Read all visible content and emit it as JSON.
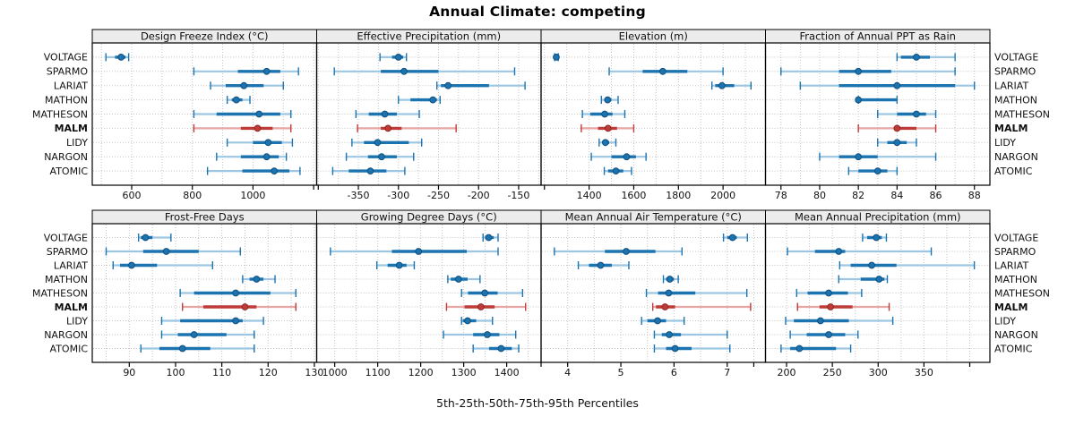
{
  "title": "Annual Climate: competing",
  "footer": "5th-25th-50th-75th-95th Percentiles",
  "sites": [
    "VOLTAGE",
    "SPARMO",
    "LARIAT",
    "MATHON",
    "MATHESON",
    "MALM",
    "LIDY",
    "NARGON",
    "ATOMIC"
  ],
  "highlight_site": "MALM",
  "percentiles": [
    5,
    25,
    50,
    75,
    95
  ],
  "colors": {
    "series": "#1b73b0",
    "series_light": "#9cc6e2",
    "series_edge": "#11507e",
    "highlight": "#bf3b38",
    "highlight_light": "#e7a6a4",
    "highlight_edge": "#8e2723",
    "strip_bg": "#ececec",
    "panel_border": "#000000",
    "grid": "#c4c4c4",
    "text": "#111111"
  },
  "chart_data": [
    {
      "type": "interval",
      "title": "Design Freeze Index (°C)",
      "row": 0,
      "col": 0,
      "xlim": [
        470,
        1210
      ],
      "ticks": [
        600,
        800,
        1000
      ],
      "grid_step": 100,
      "edge_ticks": [
        1200
      ],
      "values": [
        [
          515,
          545,
          565,
          580,
          590
        ],
        [
          805,
          950,
          1045,
          1090,
          1150
        ],
        [
          860,
          910,
          970,
          1035,
          1100
        ],
        [
          915,
          930,
          945,
          965,
          990
        ],
        [
          805,
          880,
          1020,
          1090,
          1125
        ],
        [
          805,
          960,
          1015,
          1065,
          1125
        ],
        [
          915,
          1000,
          1050,
          1095,
          1130
        ],
        [
          880,
          960,
          1045,
          1085,
          1110
        ],
        [
          850,
          965,
          1070,
          1120,
          1155
        ]
      ]
    },
    {
      "type": "interval",
      "title": "Effective Precipitation (mm)",
      "row": 0,
      "col": 1,
      "xlim": [
        -402,
        -122
      ],
      "ticks": [
        -350,
        -300,
        -250,
        -200,
        -150
      ],
      "grid_step": 25,
      "edge_ticks": [
        -400
      ],
      "values": [
        [
          -323,
          -308,
          -300,
          -294,
          -290
        ],
        [
          -380,
          -322,
          -293,
          -250,
          -155
        ],
        [
          -252,
          -247,
          -238,
          -187,
          -142
        ],
        [
          -300,
          -285,
          -257,
          -252,
          -248
        ],
        [
          -353,
          -337,
          -317,
          -302,
          -274
        ],
        [
          -351,
          -322,
          -313,
          -296,
          -228
        ],
        [
          -358,
          -343,
          -326,
          -287,
          -271
        ],
        [
          -365,
          -338,
          -321,
          -302,
          -281
        ],
        [
          -382,
          -362,
          -335,
          -315,
          -292
        ]
      ]
    },
    {
      "type": "interval",
      "title": "Elevation (m)",
      "row": 0,
      "col": 2,
      "xlim": [
        1185,
        2190
      ],
      "ticks": [
        1400,
        1600,
        1800,
        2000
      ],
      "grid_step": 100,
      "edge_ticks": [
        1200
      ],
      "values": [
        [
          1246,
          1250,
          1253,
          1257,
          1262
        ],
        [
          1490,
          1640,
          1730,
          1840,
          2000
        ],
        [
          1950,
          1965,
          1995,
          2050,
          2125
        ],
        [
          1455,
          1470,
          1483,
          1500,
          1530
        ],
        [
          1370,
          1405,
          1470,
          1505,
          1560
        ],
        [
          1365,
          1440,
          1485,
          1525,
          1600
        ],
        [
          1445,
          1462,
          1473,
          1490,
          1520
        ],
        [
          1410,
          1500,
          1568,
          1610,
          1655
        ],
        [
          1468,
          1485,
          1520,
          1553,
          1590
        ]
      ]
    },
    {
      "type": "interval",
      "title": "Fraction of Annual PPT as Rain",
      "row": 0,
      "col": 3,
      "xlim": [
        77.2,
        88.8
      ],
      "ticks": [
        78,
        80,
        82,
        84,
        86,
        88
      ],
      "grid_step": 1,
      "edge_ticks": [],
      "values": [
        [
          84,
          84.2,
          85,
          85.7,
          87
        ],
        [
          78,
          81,
          82,
          83.7,
          87
        ],
        [
          79,
          81,
          84,
          87,
          88
        ],
        [
          82,
          82,
          82,
          84,
          84
        ],
        [
          83,
          84,
          85,
          85.5,
          86
        ],
        [
          82,
          84,
          84,
          85,
          86
        ],
        [
          83,
          83.5,
          84,
          84.5,
          85
        ],
        [
          80,
          81,
          82,
          83,
          86
        ],
        [
          81.5,
          82,
          83,
          83.5,
          84
        ]
      ]
    },
    {
      "type": "interval",
      "title": "Frost-Free Days",
      "row": 1,
      "col": 0,
      "xlim": [
        82,
        130.5
      ],
      "ticks": [
        90,
        100,
        110,
        120,
        130
      ],
      "grid_step": 5,
      "edge_ticks": [],
      "values": [
        [
          92,
          92.5,
          93.5,
          95,
          99
        ],
        [
          85,
          93,
          98,
          105,
          114
        ],
        [
          86.5,
          88,
          90.5,
          96,
          108
        ],
        [
          114.5,
          116,
          117.5,
          119,
          121.5
        ],
        [
          101,
          104,
          113,
          120.5,
          126
        ],
        [
          101.5,
          106,
          115,
          117.5,
          126
        ],
        [
          97,
          101,
          113,
          114.5,
          119
        ],
        [
          97,
          100.5,
          104,
          111,
          117
        ],
        [
          92.5,
          96.5,
          101.5,
          107.5,
          117
        ]
      ]
    },
    {
      "type": "interval",
      "title": "Growing Degree Days (°C)",
      "row": 1,
      "col": 1,
      "xlim": [
        958,
        1480
      ],
      "ticks": [
        1000,
        1100,
        1200,
        1300,
        1400
      ],
      "grid_step": 50,
      "edge_ticks": [],
      "values": [
        [
          1345,
          1350,
          1358,
          1370,
          1380
        ],
        [
          990,
          1133,
          1195,
          1307,
          1380
        ],
        [
          1098,
          1123,
          1150,
          1167,
          1185
        ],
        [
          1263,
          1270,
          1288,
          1309,
          1338
        ],
        [
          1295,
          1310,
          1349,
          1379,
          1437
        ],
        [
          1260,
          1302,
          1340,
          1372,
          1444
        ],
        [
          1295,
          1298,
          1309,
          1329,
          1367
        ],
        [
          1253,
          1322,
          1355,
          1383,
          1421
        ],
        [
          1322,
          1359,
          1387,
          1412,
          1428
        ]
      ]
    },
    {
      "type": "interval",
      "title": "Mean Annual Air Temperature (°C)",
      "row": 1,
      "col": 2,
      "xlim": [
        3.5,
        7.72
      ],
      "ticks": [
        4,
        5,
        6,
        7
      ],
      "grid_step": 0.5,
      "edge_ticks": [
        3.5,
        7.5
      ],
      "values": [
        [
          6.93,
          7.0,
          7.1,
          7.18,
          7.38
        ],
        [
          3.75,
          4.7,
          5.1,
          5.65,
          6.15
        ],
        [
          4.2,
          4.4,
          4.62,
          4.83,
          5.15
        ],
        [
          5.8,
          5.85,
          5.92,
          6.0,
          6.08
        ],
        [
          5.48,
          5.7,
          5.9,
          6.4,
          7.37
        ],
        [
          5.6,
          5.66,
          5.83,
          6.02,
          7.44
        ],
        [
          5.39,
          5.5,
          5.69,
          5.85,
          6.19
        ],
        [
          5.63,
          5.77,
          5.91,
          6.13,
          7.0
        ],
        [
          5.63,
          5.85,
          6.02,
          6.33,
          7.05
        ]
      ]
    },
    {
      "type": "interval",
      "title": "Mean Annual Precipitation (mm)",
      "row": 1,
      "col": 3,
      "xlim": [
        177,
        422
      ],
      "ticks": [
        200,
        250,
        300,
        350
      ],
      "grid_step": 25,
      "edge_ticks": [
        400
      ],
      "values": [
        [
          283,
          288,
          298,
          304,
          309
        ],
        [
          201,
          231,
          257,
          264,
          358
        ],
        [
          258,
          270,
          293,
          320,
          405
        ],
        [
          257,
          281,
          301,
          307,
          310
        ],
        [
          211,
          223,
          246,
          267,
          282
        ],
        [
          212,
          236,
          248,
          272,
          312
        ],
        [
          199,
          208,
          237,
          268,
          316
        ],
        [
          204,
          222,
          246,
          264,
          278
        ],
        [
          194,
          204,
          214,
          254,
          270
        ]
      ]
    }
  ]
}
